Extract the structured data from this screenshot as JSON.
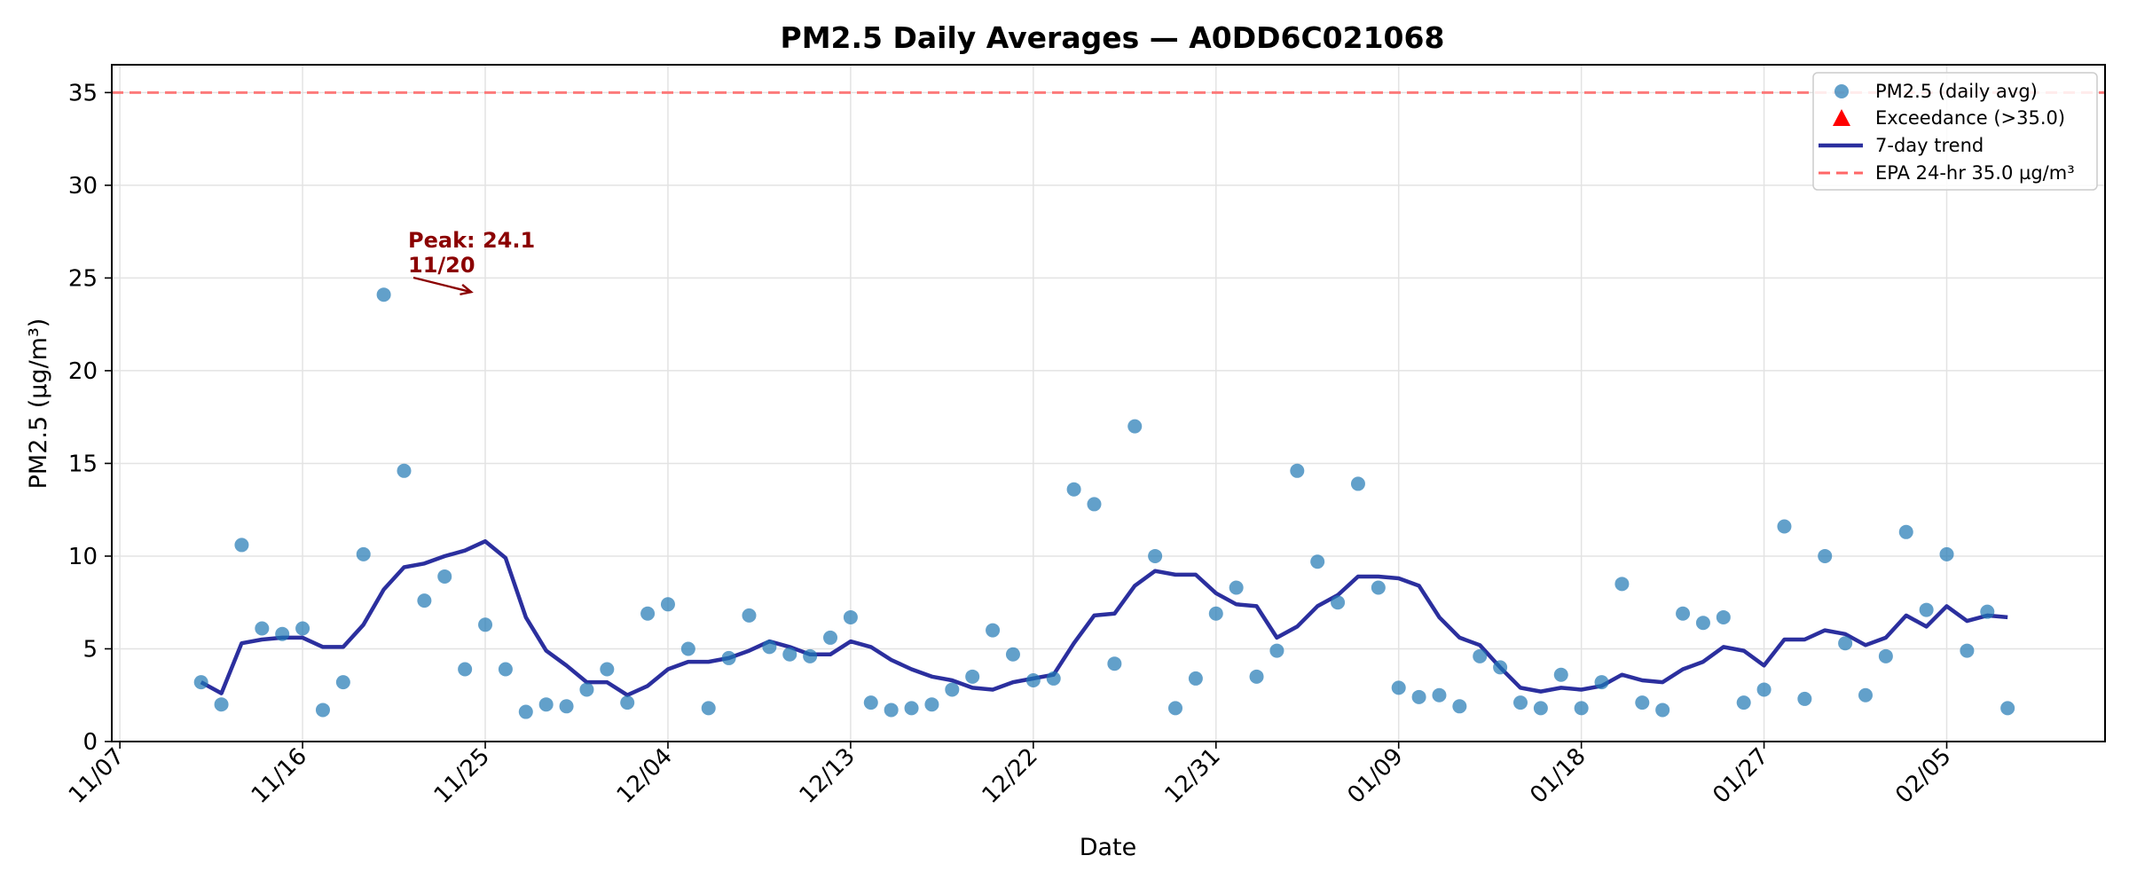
{
  "chart_data": {
    "type": "scatter",
    "title": "PM2.5 Daily Averages — A0DD6C021068",
    "xlabel": "Date",
    "ylabel": "PM2.5 (µg/m³)",
    "ylim": [
      0,
      36.5
    ],
    "yticks": [
      0,
      5,
      10,
      15,
      20,
      25,
      30,
      35
    ],
    "xlim_day": [
      -0.4,
      97.8
    ],
    "xticks": [
      {
        "day": 0,
        "label": "11/07"
      },
      {
        "day": 9,
        "label": "11/16"
      },
      {
        "day": 18,
        "label": "11/25"
      },
      {
        "day": 27,
        "label": "12/04"
      },
      {
        "day": 36,
        "label": "12/13"
      },
      {
        "day": 45,
        "label": "12/22"
      },
      {
        "day": 54,
        "label": "12/31"
      },
      {
        "day": 63,
        "label": "01/09"
      },
      {
        "day": 72,
        "label": "01/18"
      },
      {
        "day": 81,
        "label": "01/27"
      },
      {
        "day": 90,
        "label": "02/05"
      }
    ],
    "grid": true,
    "legend_position": "top-right",
    "start_date": "11/11",
    "day_offset": 4,
    "series": [
      {
        "name": "PM2.5 (daily avg)",
        "kind": "scatter",
        "color": "#1f77b4",
        "values": [
          3.2,
          2.0,
          10.6,
          6.1,
          5.8,
          6.1,
          1.7,
          3.2,
          10.1,
          24.1,
          14.6,
          7.6,
          8.9,
          3.9,
          6.3,
          3.9,
          1.6,
          2.0,
          1.9,
          2.8,
          3.9,
          2.1,
          6.9,
          7.4,
          5.0,
          1.8,
          4.5,
          6.8,
          5.1,
          4.7,
          4.6,
          5.6,
          6.7,
          2.1,
          1.7,
          1.8,
          2.0,
          2.8,
          3.5,
          6.0,
          4.7,
          3.3,
          3.4,
          13.6,
          12.8,
          4.2,
          17.0,
          10.0,
          1.8,
          3.4,
          6.9,
          8.3,
          3.5,
          4.9,
          14.6,
          9.7,
          7.5,
          13.9,
          8.3,
          2.9,
          2.4,
          2.5,
          1.9,
          4.6,
          4.0,
          2.1,
          1.8,
          3.6,
          1.8,
          3.2,
          8.5,
          2.1,
          1.7,
          6.9,
          6.4,
          6.7,
          2.1,
          2.8,
          11.6,
          2.3,
          10.0,
          5.3,
          2.5,
          4.6,
          11.3,
          7.1,
          10.1,
          4.9,
          7.0,
          1.8
        ]
      },
      {
        "name": "7-day trend",
        "kind": "line",
        "color": "#2b2f9e",
        "values": [
          3.2,
          2.6,
          5.3,
          5.5,
          5.6,
          5.6,
          5.1,
          5.1,
          6.3,
          8.2,
          9.4,
          9.6,
          10.0,
          10.3,
          10.8,
          9.9,
          6.7,
          4.9,
          4.1,
          3.2,
          3.2,
          2.5,
          3.0,
          3.9,
          4.3,
          4.3,
          4.5,
          4.9,
          5.4,
          5.1,
          4.7,
          4.7,
          5.4,
          5.1,
          4.4,
          3.9,
          3.5,
          3.3,
          2.9,
          2.8,
          3.2,
          3.4,
          3.6,
          5.3,
          6.8,
          6.9,
          8.4,
          9.2,
          9.0,
          9.0,
          8.0,
          7.4,
          7.3,
          5.6,
          6.2,
          7.3,
          7.9,
          8.9,
          8.9,
          8.8,
          8.4,
          6.7,
          5.6,
          5.2,
          4.0,
          2.9,
          2.7,
          2.9,
          2.8,
          3.0,
          3.6,
          3.3,
          3.2,
          3.9,
          4.3,
          5.1,
          4.9,
          4.1,
          5.5,
          5.5,
          6.0,
          5.8,
          5.2,
          5.6,
          6.8,
          6.2,
          7.3,
          6.5,
          6.8,
          6.7
        ]
      }
    ],
    "exceedance": {
      "name": "Exceedance (>35.0)",
      "color": "#ff0000",
      "points": []
    },
    "threshold": {
      "name": "EPA 24-hr 35.0 µg/m³",
      "value": 35.0,
      "color": "#ff6666"
    },
    "annotation": {
      "line1": "Peak: 24.1",
      "line2": "11/20",
      "day": 13,
      "value": 24.1
    }
  }
}
